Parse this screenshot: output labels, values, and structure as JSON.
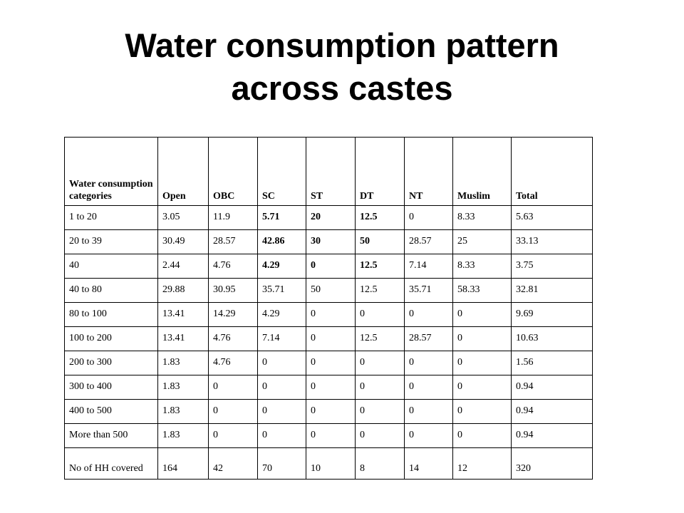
{
  "title": {
    "line1": "Water consumption pattern",
    "line2": "across castes"
  },
  "table": {
    "headers": [
      "Water consumption categories",
      "Open",
      "OBC",
      "SC",
      "ST",
      "DT",
      "NT",
      "Muslim",
      "Total"
    ],
    "rows": [
      {
        "label": "1 to 20",
        "values": [
          "3.05",
          "11.9",
          "5.71",
          "20",
          "12.5",
          "0",
          "8.33",
          "5.63"
        ],
        "bold": [
          2,
          3,
          4
        ]
      },
      {
        "label": "20 to 39",
        "values": [
          "30.49",
          "28.57",
          "42.86",
          "30",
          "50",
          "28.57",
          "25",
          "33.13"
        ],
        "bold": [
          2,
          3,
          4
        ]
      },
      {
        "label": "40",
        "values": [
          "2.44",
          "4.76",
          "4.29",
          "0",
          "12.5",
          "7.14",
          "8.33",
          "3.75"
        ],
        "bold": [
          2,
          3,
          4
        ]
      },
      {
        "label": "40 to 80",
        "values": [
          "29.88",
          "30.95",
          "35.71",
          "50",
          "12.5",
          "35.71",
          "58.33",
          "32.81"
        ],
        "bold": []
      },
      {
        "label": "80 to 100",
        "values": [
          "13.41",
          "14.29",
          "4.29",
          "0",
          "0",
          "0",
          "0",
          "9.69"
        ],
        "bold": []
      },
      {
        "label": "100 to 200",
        "values": [
          "13.41",
          "4.76",
          "7.14",
          "0",
          "12.5",
          "28.57",
          "0",
          "10.63"
        ],
        "bold": []
      },
      {
        "label": "200 to 300",
        "values": [
          "1.83",
          "4.76",
          "0",
          "0",
          "0",
          "0",
          "0",
          "1.56"
        ],
        "bold": []
      },
      {
        "label": "300 to 400",
        "values": [
          "1.83",
          "0",
          "0",
          "0",
          "0",
          "0",
          "0",
          "0.94"
        ],
        "bold": []
      },
      {
        "label": "400 to 500",
        "values": [
          "1.83",
          "0",
          "0",
          "0",
          "0",
          "0",
          "0",
          "0.94"
        ],
        "bold": []
      },
      {
        "label": "More than 500",
        "values": [
          "1.83",
          "0",
          "0",
          "0",
          "0",
          "0",
          "0",
          "0.94"
        ],
        "bold": []
      },
      {
        "label": "No of HH covered",
        "values": [
          "164",
          "42",
          "70",
          "10",
          "8",
          "14",
          "12",
          "320"
        ],
        "bold": []
      }
    ]
  }
}
